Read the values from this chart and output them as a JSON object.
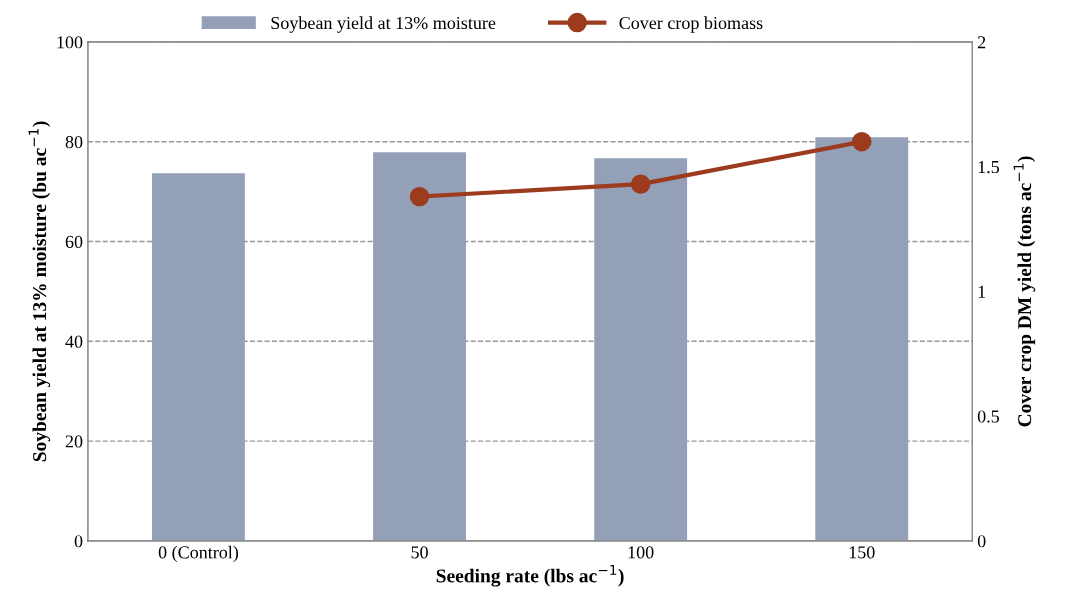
{
  "chart_data": {
    "type": "bar",
    "xlabel": "Seeding rate (lbs ac$^{−1}$)",
    "ylabel": "Soybean yield at 13% moisture (bu ac$^{−1}$)",
    "y2label": "Cover crop DM yield (tons ac$^{−1}$)",
    "categories": [
      "0 (Control)",
      "50",
      "100",
      "150"
    ],
    "series": [
      {
        "name": "Soybean yield at 13% moisture",
        "color": "#949fb8",
        "values": [
          73.7,
          77.9,
          76.7,
          80.9
        ]
      },
      {
        "name": "Cover crop biomass",
        "type": "line",
        "axis": "y2",
        "color": "#9c3b1e",
        "marker": "circle",
        "line_style": "solid",
        "values": [
          null,
          1.38,
          1.43,
          1.6
        ]
      }
    ],
    "ylim": [
      0,
      100
    ],
    "yticks": [
      0,
      20,
      40,
      60,
      80,
      100
    ],
    "y2lim": [
      0,
      2
    ],
    "y2ticks": [
      0,
      0.5,
      1,
      1.5,
      2
    ],
    "grid": "y",
    "legend": "top"
  }
}
